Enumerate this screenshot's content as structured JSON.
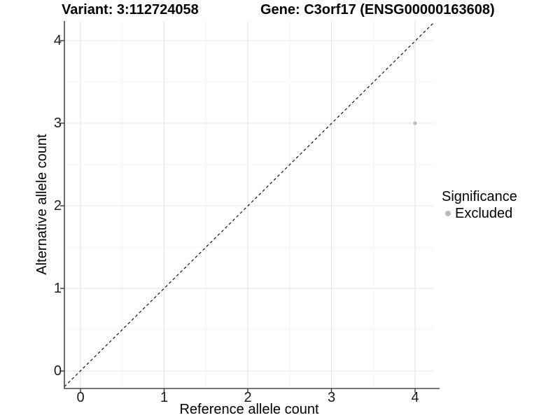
{
  "titles": {
    "variant": "Variant: 3:112724058",
    "gene": "Gene: C3orf17 (ENSG00000163608)"
  },
  "axes": {
    "x": {
      "title": "Reference allele count",
      "tick_labels": [
        "0",
        "1",
        "2",
        "3",
        "4"
      ]
    },
    "y": {
      "title": "Alternative allele count",
      "tick_labels": [
        "0",
        "1",
        "2",
        "3",
        "4"
      ]
    }
  },
  "legend": {
    "title": "Significance",
    "entries": [
      {
        "label": "Excluded",
        "color": "#b9b9b9"
      }
    ]
  },
  "colors": {
    "background": "#ffffff",
    "grid_major": "#e4e4e4",
    "grid_minor": "#f2f2f2",
    "axis_line": "#4a4a4a",
    "tick_mark": "#333333",
    "identity_line": "#111111",
    "point": "#b9b9b9"
  },
  "chart_data": {
    "type": "scatter",
    "title_left": "Variant: 3:112724058",
    "title_right": "Gene: C3orf17 (ENSG00000163608)",
    "xlabel": "Reference allele count",
    "ylabel": "Alternative allele count",
    "x_ticks": [
      0,
      1,
      2,
      3,
      4
    ],
    "y_ticks": [
      0,
      1,
      2,
      3,
      4
    ],
    "x_minor_ticks": [
      0.5,
      1.5,
      2.5,
      3.5
    ],
    "y_minor_ticks": [
      0.5,
      1.5,
      2.5,
      3.5
    ],
    "xlim": [
      -0.19,
      4.22
    ],
    "ylim": [
      -0.21,
      4.24
    ],
    "grid": "major+minor",
    "legend_position": "right",
    "series": [
      {
        "name": "Excluded",
        "color": "#b9b9b9",
        "points": [
          {
            "x": 4,
            "y": 3
          }
        ]
      }
    ],
    "reference_line": {
      "kind": "identity y=x",
      "style": "dashed",
      "color": "#111111"
    }
  }
}
